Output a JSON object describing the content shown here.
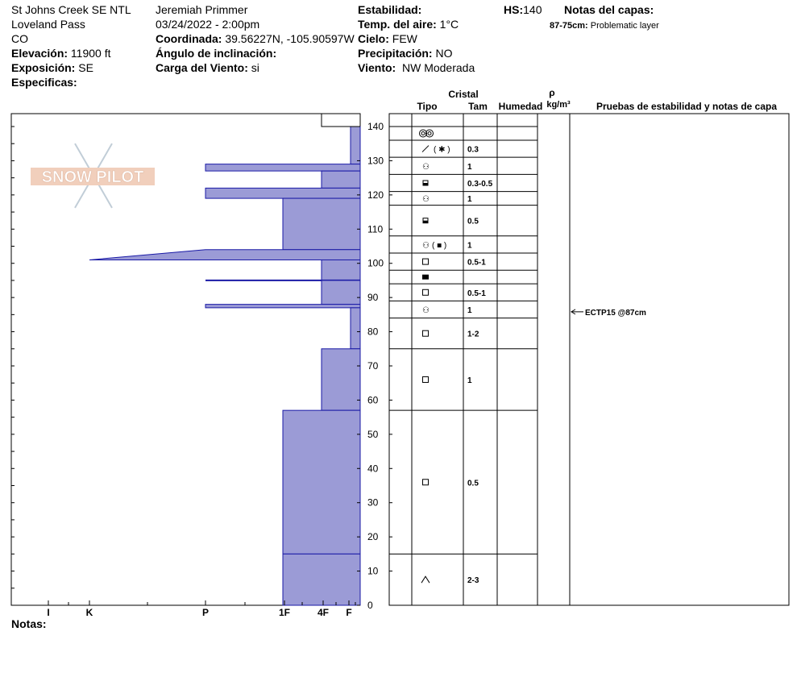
{
  "header": {
    "site": "St Johns Creek SE NTL",
    "pass": "Loveland Pass",
    "state": "CO",
    "elevation_label": "Elevación:",
    "elevation_value": "11900 ft",
    "aspect_label": "Exposición:",
    "aspect_value": "SE",
    "specifics_label": "Especificas:",
    "observer": "Jeremiah Primmer",
    "datetime": "03/24/2022 - 2:00pm",
    "coord_label": "Coordinada:",
    "coord_value": "39.56227N, -105.90597W",
    "slope_label": "Ángulo de inclinación:",
    "wind_load_label": "Carga del Viento:",
    "wind_load_value": "si",
    "stability_label": "Estabilidad:",
    "air_temp_label": "Temp. del aire:",
    "air_temp_value": "1°C",
    "sky_label": "Cielo:",
    "sky_value": "FEW",
    "precip_label": "Precipitación:",
    "precip_value": "NO",
    "wind_label": "Viento:",
    "wind_value": "NW Moderada",
    "hs_label": "HS:",
    "hs_value": "140",
    "layer_notes_label": "Notas del capas:",
    "layer_note_range": "87-75cm:",
    "layer_note_text": "Problematic layer"
  },
  "footer": {
    "notes_label": "Notas:"
  },
  "logo": {
    "text": "SNOW PILOT"
  },
  "colors": {
    "hardness_fill": "#9b9bd6",
    "hardness_line": "#1a1aa6",
    "grid": "#000000"
  },
  "chart_data": {
    "type": "snow_profile",
    "y_axis": {
      "min": 0,
      "max": 140,
      "step": 10,
      "unit": "cm"
    },
    "hardness_scale": [
      "F",
      "4F",
      "1F",
      "P",
      "K",
      "I"
    ],
    "hardness_ticks": [
      "I",
      "K",
      "P",
      "1F",
      "4F",
      "F"
    ],
    "columns": {
      "crystal_header": "Cristal",
      "type_header": "Tipo",
      "size_header": "Tam",
      "moisture_header": "Humedad",
      "density_symbol": "ρ",
      "density_unit": "kg/m³",
      "tests_header": "Pruebas de estabilidad y notas de capa"
    },
    "hardness_profile": [
      {
        "top": 140,
        "bottom": 129,
        "hardness": "F"
      },
      {
        "top": 129,
        "bottom": 127,
        "hardness": "P",
        "hardness_bottom": "P"
      },
      {
        "top": 127,
        "bottom": 122,
        "hardness": "4F"
      },
      {
        "top": 122,
        "bottom": 119,
        "hardness": "P"
      },
      {
        "top": 119,
        "bottom": 104,
        "hardness": "1F"
      },
      {
        "top": 104,
        "bottom": 101,
        "hardness": "P",
        "hardness_bottom": "K+"
      },
      {
        "top": 101,
        "bottom": 95,
        "hardness": "4F"
      },
      {
        "top": 95,
        "bottom": 95,
        "hardness": "P",
        "thin": true
      },
      {
        "top": 95,
        "bottom": 88,
        "hardness": "4F"
      },
      {
        "top": 88,
        "bottom": 87,
        "hardness": "P"
      },
      {
        "top": 87,
        "bottom": 75,
        "hardness": "F"
      },
      {
        "top": 75,
        "bottom": 57,
        "hardness": "4F"
      },
      {
        "top": 57,
        "bottom": 15,
        "hardness": "1F"
      },
      {
        "top": 15,
        "bottom": 0,
        "hardness": "1F"
      }
    ],
    "layers": [
      {
        "top": 140,
        "bottom": 136,
        "type_icon": "rounded-grains",
        "size": ""
      },
      {
        "top": 136,
        "bottom": 131,
        "type_icon": "decomposing-fragments",
        "size": "0.3"
      },
      {
        "top": 131,
        "bottom": 126,
        "type_icon": "rounded-faceted",
        "size": "1"
      },
      {
        "top": 126,
        "bottom": 121,
        "type_icon": "faceted-rounded",
        "size": "0.3-0.5"
      },
      {
        "top": 121,
        "bottom": 117,
        "type_icon": "rounded-faceted",
        "size": "1"
      },
      {
        "top": 117,
        "bottom": 108,
        "type_icon": "faceted-rounded",
        "size": "0.5"
      },
      {
        "top": 108,
        "bottom": 103,
        "type_icon": "rounded-faceted-mixed",
        "size": "1"
      },
      {
        "top": 103,
        "bottom": 98,
        "type_icon": "faceted-crystals",
        "size": "0.5-1"
      },
      {
        "top": 98,
        "bottom": 94,
        "type_icon": "melt-freeze-crust",
        "size": ""
      },
      {
        "top": 94,
        "bottom": 89,
        "type_icon": "faceted-crystals",
        "size": "0.5-1"
      },
      {
        "top": 89,
        "bottom": 84,
        "type_icon": "rounded-faceted",
        "size": "1"
      },
      {
        "top": 84,
        "bottom": 75,
        "type_icon": "faceted-crystals",
        "size": "1-2"
      },
      {
        "top": 75,
        "bottom": 57,
        "type_icon": "faceted-crystals",
        "size": "1"
      },
      {
        "top": 57,
        "bottom": 15,
        "type_icon": "faceted-crystals",
        "size": "0.5"
      },
      {
        "top": 15,
        "bottom": 0,
        "type_icon": "depth-hoar",
        "size": "2-3"
      }
    ],
    "tests": [
      {
        "depth": 87,
        "text": "ECTP15 @87cm"
      }
    ]
  }
}
